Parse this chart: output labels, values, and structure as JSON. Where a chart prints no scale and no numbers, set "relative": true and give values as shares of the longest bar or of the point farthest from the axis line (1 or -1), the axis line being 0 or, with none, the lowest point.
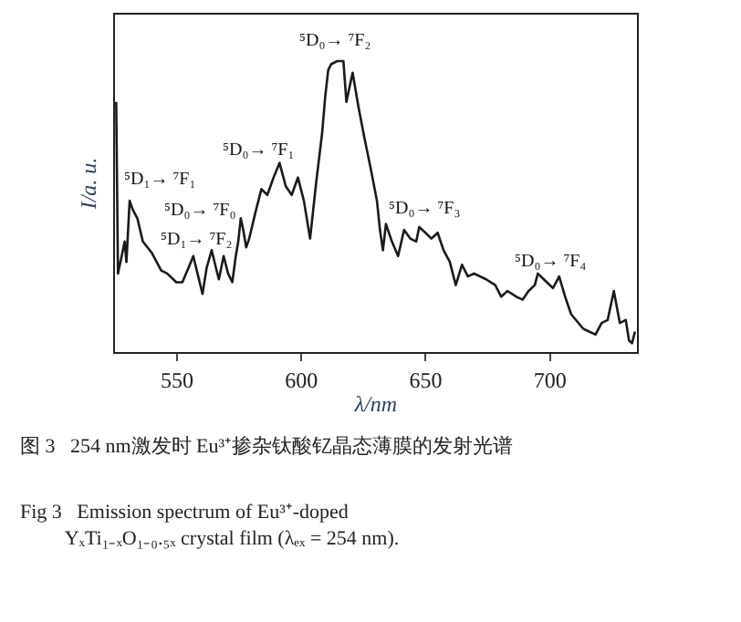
{
  "chart_data": {
    "type": "line",
    "relative": true,
    "xlabel": "λ/nm",
    "ylabel": "I/a. u.",
    "color": "#1a1a1a",
    "legend": false,
    "marker": "none",
    "line_style": "solid",
    "xlim": [
      525,
      735
    ],
    "xticks": [
      550,
      600,
      650,
      700
    ],
    "x": [
      525.5,
      526.2,
      527.7,
      528.9,
      529.6,
      530.9,
      532.1,
      534.0,
      536.2,
      539.9,
      543.6,
      546.0,
      549.7,
      552.1,
      554.6,
      556.5,
      558.2,
      560.2,
      561.9,
      563.9,
      565.6,
      566.8,
      568.7,
      570.5,
      572.2,
      573.6,
      574.6,
      575.6,
      576.6,
      577.8,
      579.0,
      581.5,
      583.9,
      586.3,
      588.8,
      591.2,
      593.7,
      596.1,
      598.6,
      601.0,
      603.5,
      605.9,
      608.3,
      609.6,
      610.8,
      612.0,
      614.4,
      616.9,
      618.1,
      620.6,
      623.0,
      625.5,
      627.9,
      630.4,
      631.6,
      632.8,
      634.0,
      636.4,
      638.9,
      641.3,
      643.8,
      646.2,
      647.4,
      649.9,
      652.3,
      654.8,
      657.2,
      659.7,
      662.1,
      664.6,
      667.0,
      669.4,
      674.3,
      678.0,
      680.4,
      682.9,
      686.5,
      689.0,
      691.4,
      693.9,
      695.1,
      697.5,
      701.2,
      703.7,
      706.1,
      708.5,
      713.4,
      718.3,
      720.8,
      723.2,
      725.7,
      728.1,
      730.5,
      731.8,
      733.0,
      734.2
    ],
    "values": [
      0.86,
      0.27,
      0.33,
      0.38,
      0.31,
      0.52,
      0.49,
      0.46,
      0.38,
      0.34,
      0.28,
      0.27,
      0.24,
      0.24,
      0.29,
      0.33,
      0.27,
      0.2,
      0.29,
      0.35,
      0.29,
      0.25,
      0.33,
      0.27,
      0.24,
      0.33,
      0.38,
      0.46,
      0.42,
      0.36,
      0.39,
      0.48,
      0.56,
      0.54,
      0.6,
      0.65,
      0.57,
      0.54,
      0.6,
      0.52,
      0.39,
      0.58,
      0.75,
      0.88,
      0.97,
      0.99,
      1.0,
      1.0,
      0.86,
      0.96,
      0.84,
      0.73,
      0.63,
      0.52,
      0.42,
      0.35,
      0.44,
      0.38,
      0.33,
      0.42,
      0.39,
      0.38,
      0.43,
      0.41,
      0.39,
      0.41,
      0.35,
      0.31,
      0.23,
      0.3,
      0.26,
      0.27,
      0.25,
      0.23,
      0.19,
      0.21,
      0.19,
      0.18,
      0.21,
      0.23,
      0.27,
      0.25,
      0.22,
      0.26,
      0.19,
      0.13,
      0.08,
      0.06,
      0.1,
      0.11,
      0.21,
      0.1,
      0.11,
      0.04,
      0.03,
      0.07
    ],
    "annotations": [
      "⁵D₁→ ⁷F₁",
      "⁵D₀→ ⁷F₀",
      "⁵D₁→ ⁷F₂",
      "⁵D₀→ ⁷F₁",
      "⁵D₀→ ⁷F₂",
      "⁵D₀→ ⁷F₃",
      "⁵D₀→ ⁷F₄",
      "图 3   254 nm激发时 Eu³⁺掺杂钛酸钇晶态薄膜的发射光谱",
      "Fig 3   Emission spectrum of Eu³⁺-doped YₓTi₁₋ₓO₁₋₀.₅ₓ crystal film (λₑₓ = 254 nm)."
    ]
  }
}
